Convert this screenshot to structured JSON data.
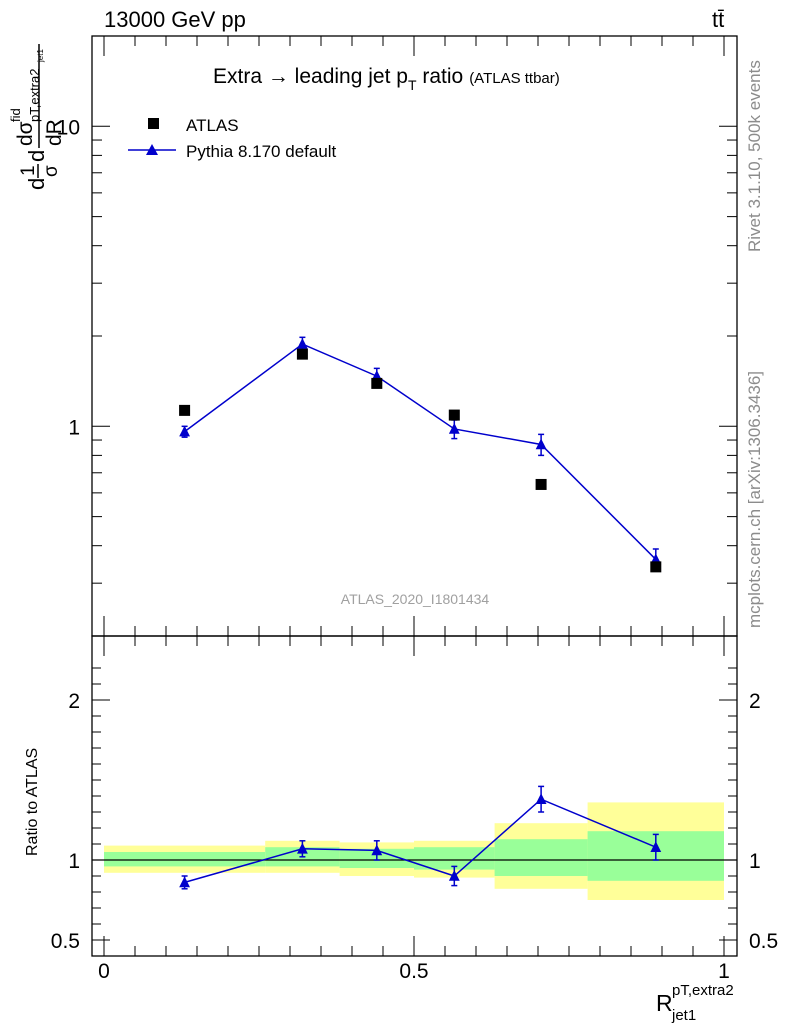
{
  "header": {
    "energy": "13000 GeV pp",
    "process": "tt̄"
  },
  "side_labels": {
    "rivet": "Rivet 3.1.10,  500k events",
    "mcplots": "mcplots.cern.ch [arXiv:1306.3436]"
  },
  "main_plot": {
    "title": "Extra → leading jet p",
    "title_sub": "T",
    "title_tail": " ratio",
    "title_small": "(ATLAS ttbar)",
    "ylabel_parts": {
      "d1": "d",
      "frac1_num": "1",
      "frac1_den": "σ",
      "d2": "d",
      "num": "dσ",
      "num_sup": "fid",
      "num_sub": "pT,extra2",
      "num_sub2": "jet1",
      "den": "dR"
    },
    "watermark": "ATLAS_2020_I1801434",
    "yaxis": {
      "scale": "log",
      "range": [
        0.2,
        20
      ],
      "tick_labels": [
        "1",
        "10"
      ]
    }
  },
  "legend": {
    "entries": [
      {
        "label": "ATLAS",
        "marker": "square",
        "color": "#000000"
      },
      {
        "label": "Pythia 8.170 default",
        "marker": "triangle",
        "color": "#0000cc"
      }
    ]
  },
  "ratio_plot": {
    "ylabel": "Ratio to ATLAS",
    "yaxis": {
      "range": [
        0.4,
        2.4
      ],
      "tick_labels": [
        "0.5",
        "1",
        "2"
      ]
    }
  },
  "xaxis": {
    "label_base": "R",
    "label_sup": "pT,extra2",
    "label_sub": "jet1",
    "range": [
      0,
      1
    ],
    "tick_labels": [
      "0",
      "0.5",
      "1"
    ]
  },
  "chart_data": {
    "type": "scatter",
    "bins": [
      {
        "lo": 0.0,
        "hi": 0.26,
        "x": 0.13
      },
      {
        "lo": 0.26,
        "hi": 0.38,
        "x": 0.32
      },
      {
        "lo": 0.38,
        "hi": 0.5,
        "x": 0.44
      },
      {
        "lo": 0.5,
        "hi": 0.63,
        "x": 0.565
      },
      {
        "lo": 0.63,
        "hi": 0.78,
        "x": 0.705
      },
      {
        "lo": 0.78,
        "hi": 1.0,
        "x": 0.89
      }
    ],
    "series": [
      {
        "name": "ATLAS",
        "values": [
          1.13,
          1.74,
          1.39,
          1.09,
          0.64,
          0.34
        ]
      },
      {
        "name": "Pythia 8.170 default",
        "values": [
          0.96,
          1.88,
          1.47,
          0.98,
          0.87,
          0.36
        ],
        "err_lo": [
          0.04,
          0.1,
          0.09,
          0.07,
          0.07,
          0.03
        ],
        "err_hi": [
          0.04,
          0.1,
          0.09,
          0.07,
          0.07,
          0.03
        ]
      }
    ],
    "ratio": {
      "values": [
        0.86,
        1.07,
        1.06,
        0.9,
        1.38,
        1.08
      ],
      "err_lo": [
        0.04,
        0.05,
        0.06,
        0.06,
        0.08,
        0.08
      ],
      "err_hi": [
        0.04,
        0.05,
        0.06,
        0.06,
        0.08,
        0.08
      ],
      "band_green": [
        [
          0.96,
          1.05
        ],
        [
          0.96,
          1.08
        ],
        [
          0.95,
          1.07
        ],
        [
          0.94,
          1.08
        ],
        [
          0.9,
          1.13
        ],
        [
          0.87,
          1.18
        ]
      ],
      "band_yellow": [
        [
          0.92,
          1.09
        ],
        [
          0.92,
          1.12
        ],
        [
          0.9,
          1.11
        ],
        [
          0.89,
          1.12
        ],
        [
          0.82,
          1.23
        ],
        [
          0.75,
          1.36
        ]
      ]
    },
    "title": "Extra → leading jet pT ratio (ATLAS ttbar)",
    "xlabel": "R^{pT,extra2}_{jet1}",
    "ylabel": "1/σ dσ^{fid}/dR",
    "xlim": [
      0,
      1
    ],
    "ylim": [
      0.2,
      20
    ],
    "ratio_ylim": [
      0.4,
      2.4
    ]
  }
}
